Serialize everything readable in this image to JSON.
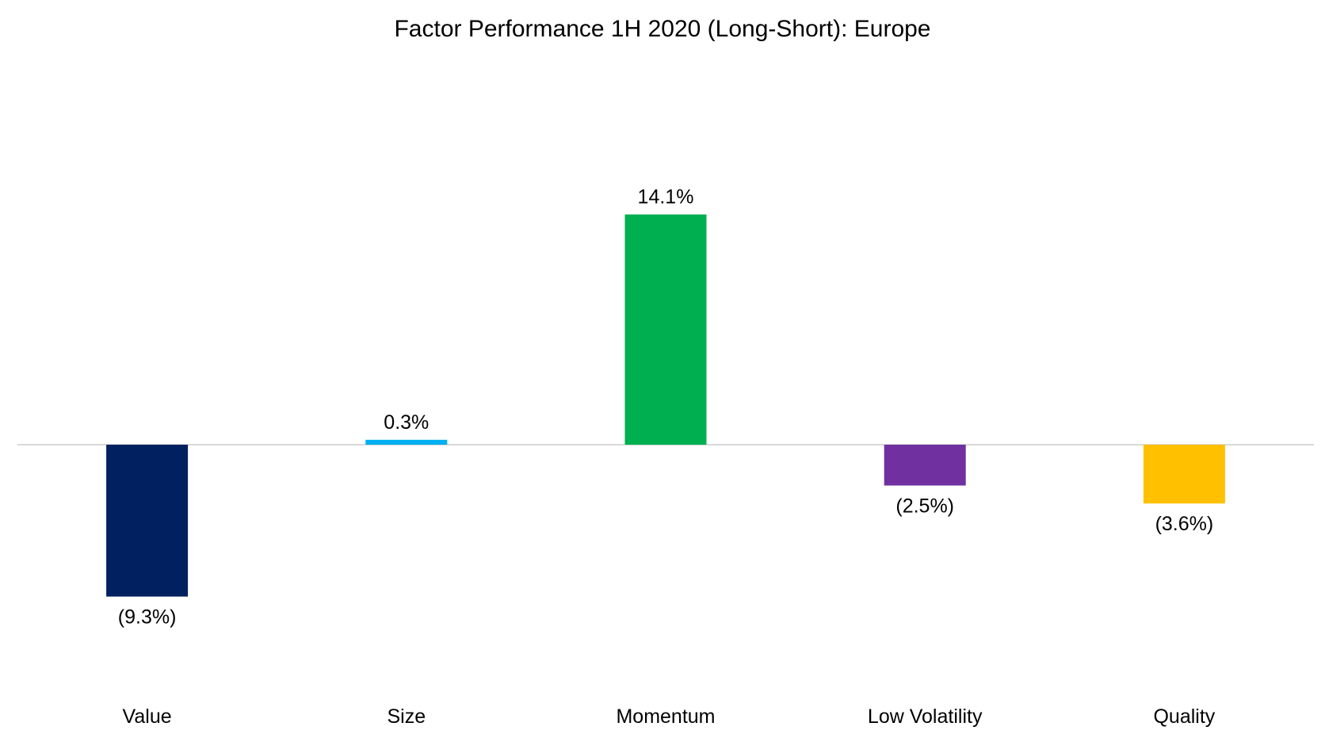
{
  "chart_data": {
    "type": "bar",
    "title": "Factor Performance 1H 2020 (Long-Short): Europe",
    "xlabel": "",
    "ylabel": "",
    "categories": [
      "Value",
      "Size",
      "Momentum",
      "Low Volatility",
      "Quality"
    ],
    "values": [
      -9.3,
      0.3,
      14.1,
      -2.5,
      -3.6
    ],
    "data_labels": [
      "(9.3%)",
      "0.3%",
      "14.1%",
      "(2.5%)",
      "(3.6%)"
    ],
    "colors": [
      "#002060",
      "#00B0F0",
      "#00B050",
      "#7030A0",
      "#FFC000"
    ],
    "ylim": [
      -14,
      24
    ],
    "grid": false,
    "legend": "none"
  }
}
